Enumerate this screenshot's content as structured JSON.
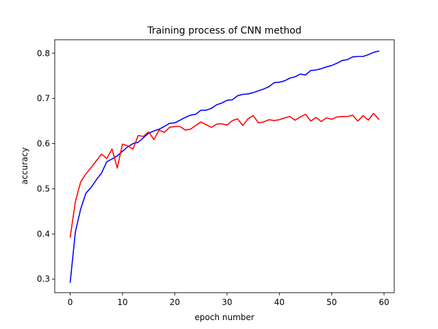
{
  "chart_data": {
    "type": "line",
    "title": "Training process of CNN method",
    "xlabel": "epoch number",
    "ylabel": "accuracy",
    "xlim": [
      -2.95,
      61.95
    ],
    "ylim": [
      0.27,
      0.83
    ],
    "xticks": [
      0,
      10,
      20,
      30,
      40,
      50,
      60
    ],
    "yticks": [
      0.3,
      0.4,
      0.5,
      0.6,
      0.7,
      0.8
    ],
    "ytick_labels": [
      "0.3",
      "0.4",
      "0.5",
      "0.6",
      "0.7",
      "0.8"
    ],
    "grid": false,
    "x": [
      0,
      1,
      2,
      3,
      4,
      5,
      6,
      7,
      8,
      9,
      10,
      11,
      12,
      13,
      14,
      15,
      16,
      17,
      18,
      19,
      20,
      21,
      22,
      23,
      24,
      25,
      26,
      27,
      28,
      29,
      30,
      31,
      32,
      33,
      34,
      35,
      36,
      37,
      38,
      39,
      40,
      41,
      42,
      43,
      44,
      45,
      46,
      47,
      48,
      49,
      50,
      51,
      52,
      53,
      54,
      55,
      56,
      57,
      58,
      59
    ],
    "series": [
      {
        "color": "#0000ff",
        "values": [
          0.293,
          0.405,
          0.455,
          0.49,
          0.503,
          0.52,
          0.535,
          0.56,
          0.566,
          0.573,
          0.583,
          0.593,
          0.6,
          0.603,
          0.613,
          0.623,
          0.628,
          0.632,
          0.638,
          0.645,
          0.646,
          0.652,
          0.658,
          0.663,
          0.665,
          0.674,
          0.674,
          0.678,
          0.686,
          0.69,
          0.696,
          0.697,
          0.706,
          0.709,
          0.71,
          0.713,
          0.717,
          0.721,
          0.726,
          0.735,
          0.736,
          0.739,
          0.745,
          0.748,
          0.754,
          0.752,
          0.762,
          0.763,
          0.766,
          0.77,
          0.773,
          0.778,
          0.784,
          0.786,
          0.792,
          0.793,
          0.793,
          0.797,
          0.802,
          0.805
        ]
      },
      {
        "color": "#ff0000",
        "values": [
          0.393,
          0.472,
          0.515,
          0.533,
          0.547,
          0.562,
          0.577,
          0.567,
          0.588,
          0.546,
          0.599,
          0.595,
          0.588,
          0.618,
          0.616,
          0.626,
          0.609,
          0.63,
          0.625,
          0.636,
          0.638,
          0.638,
          0.63,
          0.632,
          0.64,
          0.648,
          0.642,
          0.636,
          0.643,
          0.644,
          0.641,
          0.651,
          0.655,
          0.64,
          0.655,
          0.662,
          0.646,
          0.648,
          0.653,
          0.651,
          0.653,
          0.657,
          0.66,
          0.652,
          0.659,
          0.665,
          0.65,
          0.658,
          0.649,
          0.657,
          0.654,
          0.659,
          0.66,
          0.66,
          0.663,
          0.65,
          0.662,
          0.652,
          0.667,
          0.654
        ]
      }
    ]
  }
}
